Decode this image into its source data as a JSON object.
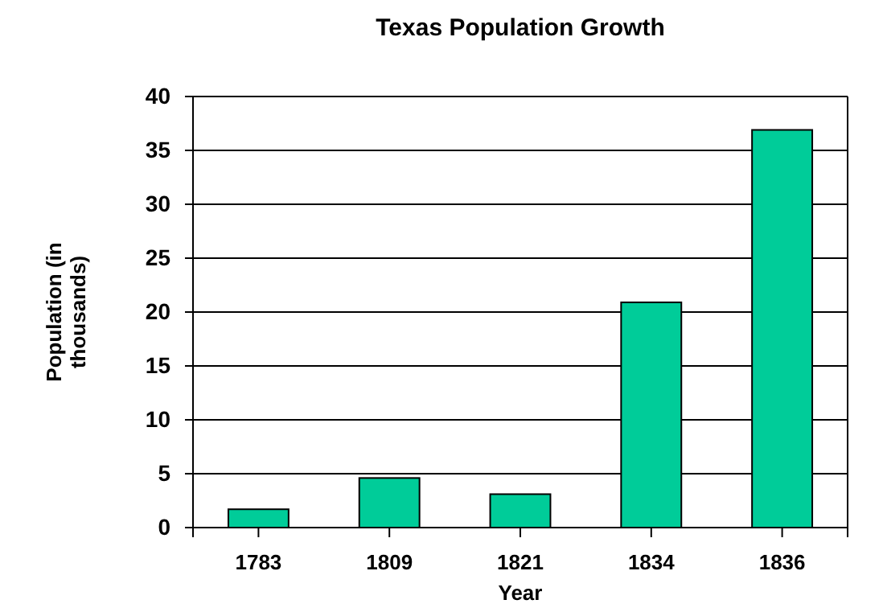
{
  "chart_data": {
    "type": "bar",
    "title": "Texas Population Growth",
    "xlabel": "Year",
    "ylabel": "Population (in thousands)",
    "categories": [
      "1783",
      "1809",
      "1821",
      "1834",
      "1836"
    ],
    "values": [
      1.7,
      4.6,
      3.1,
      20.9,
      36.9
    ],
    "color": "#00cc99",
    "ylim": [
      0,
      40
    ],
    "yticks": [
      0,
      5,
      10,
      15,
      20,
      25,
      30,
      35,
      40
    ],
    "grid": "y"
  }
}
